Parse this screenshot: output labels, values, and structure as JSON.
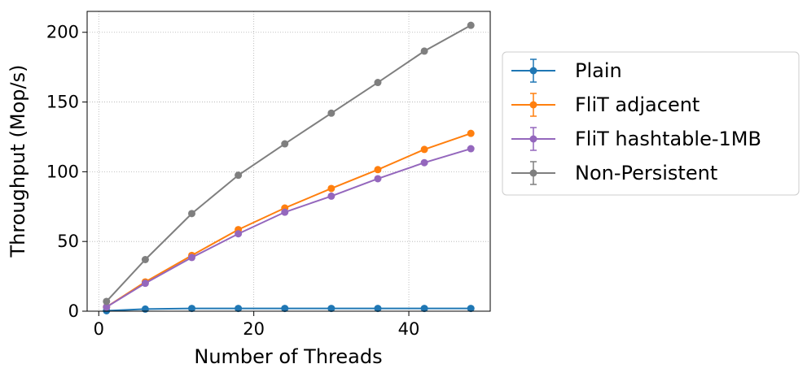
{
  "chart_data": {
    "type": "line",
    "xlabel": "Number of Threads",
    "ylabel": "Throughput (Mop/s)",
    "xlim": [
      -1.5,
      50.5
    ],
    "ylim": [
      0,
      215
    ],
    "xticks": [
      0,
      20,
      40
    ],
    "yticks": [
      0,
      50,
      100,
      150,
      200
    ],
    "grid": true,
    "legend_position": "outside-right",
    "x": [
      1,
      6,
      12,
      18,
      24,
      30,
      36,
      42,
      48
    ],
    "series": [
      {
        "name": "Plain",
        "color": "#1f77b4",
        "values": [
          0.3,
          1.5,
          2.0,
          2.0,
          2.0,
          2.0,
          2.0,
          2.0,
          2.0
        ]
      },
      {
        "name": "FliT adjacent",
        "color": "#ff7f0e",
        "values": [
          3.0,
          21.0,
          40.0,
          58.5,
          74.0,
          88.0,
          101.5,
          116.0,
          127.5
        ]
      },
      {
        "name": "FliT hashtable-1MB",
        "color": "#9467bd",
        "values": [
          3.0,
          20.0,
          38.5,
          55.5,
          71.0,
          82.5,
          95.0,
          106.5,
          116.5
        ]
      },
      {
        "name": "Non-Persistent",
        "color": "#7f7f7f",
        "values": [
          7.0,
          37.0,
          70.0,
          97.5,
          120.0,
          142.0,
          164.0,
          186.5,
          205.0
        ]
      }
    ]
  }
}
